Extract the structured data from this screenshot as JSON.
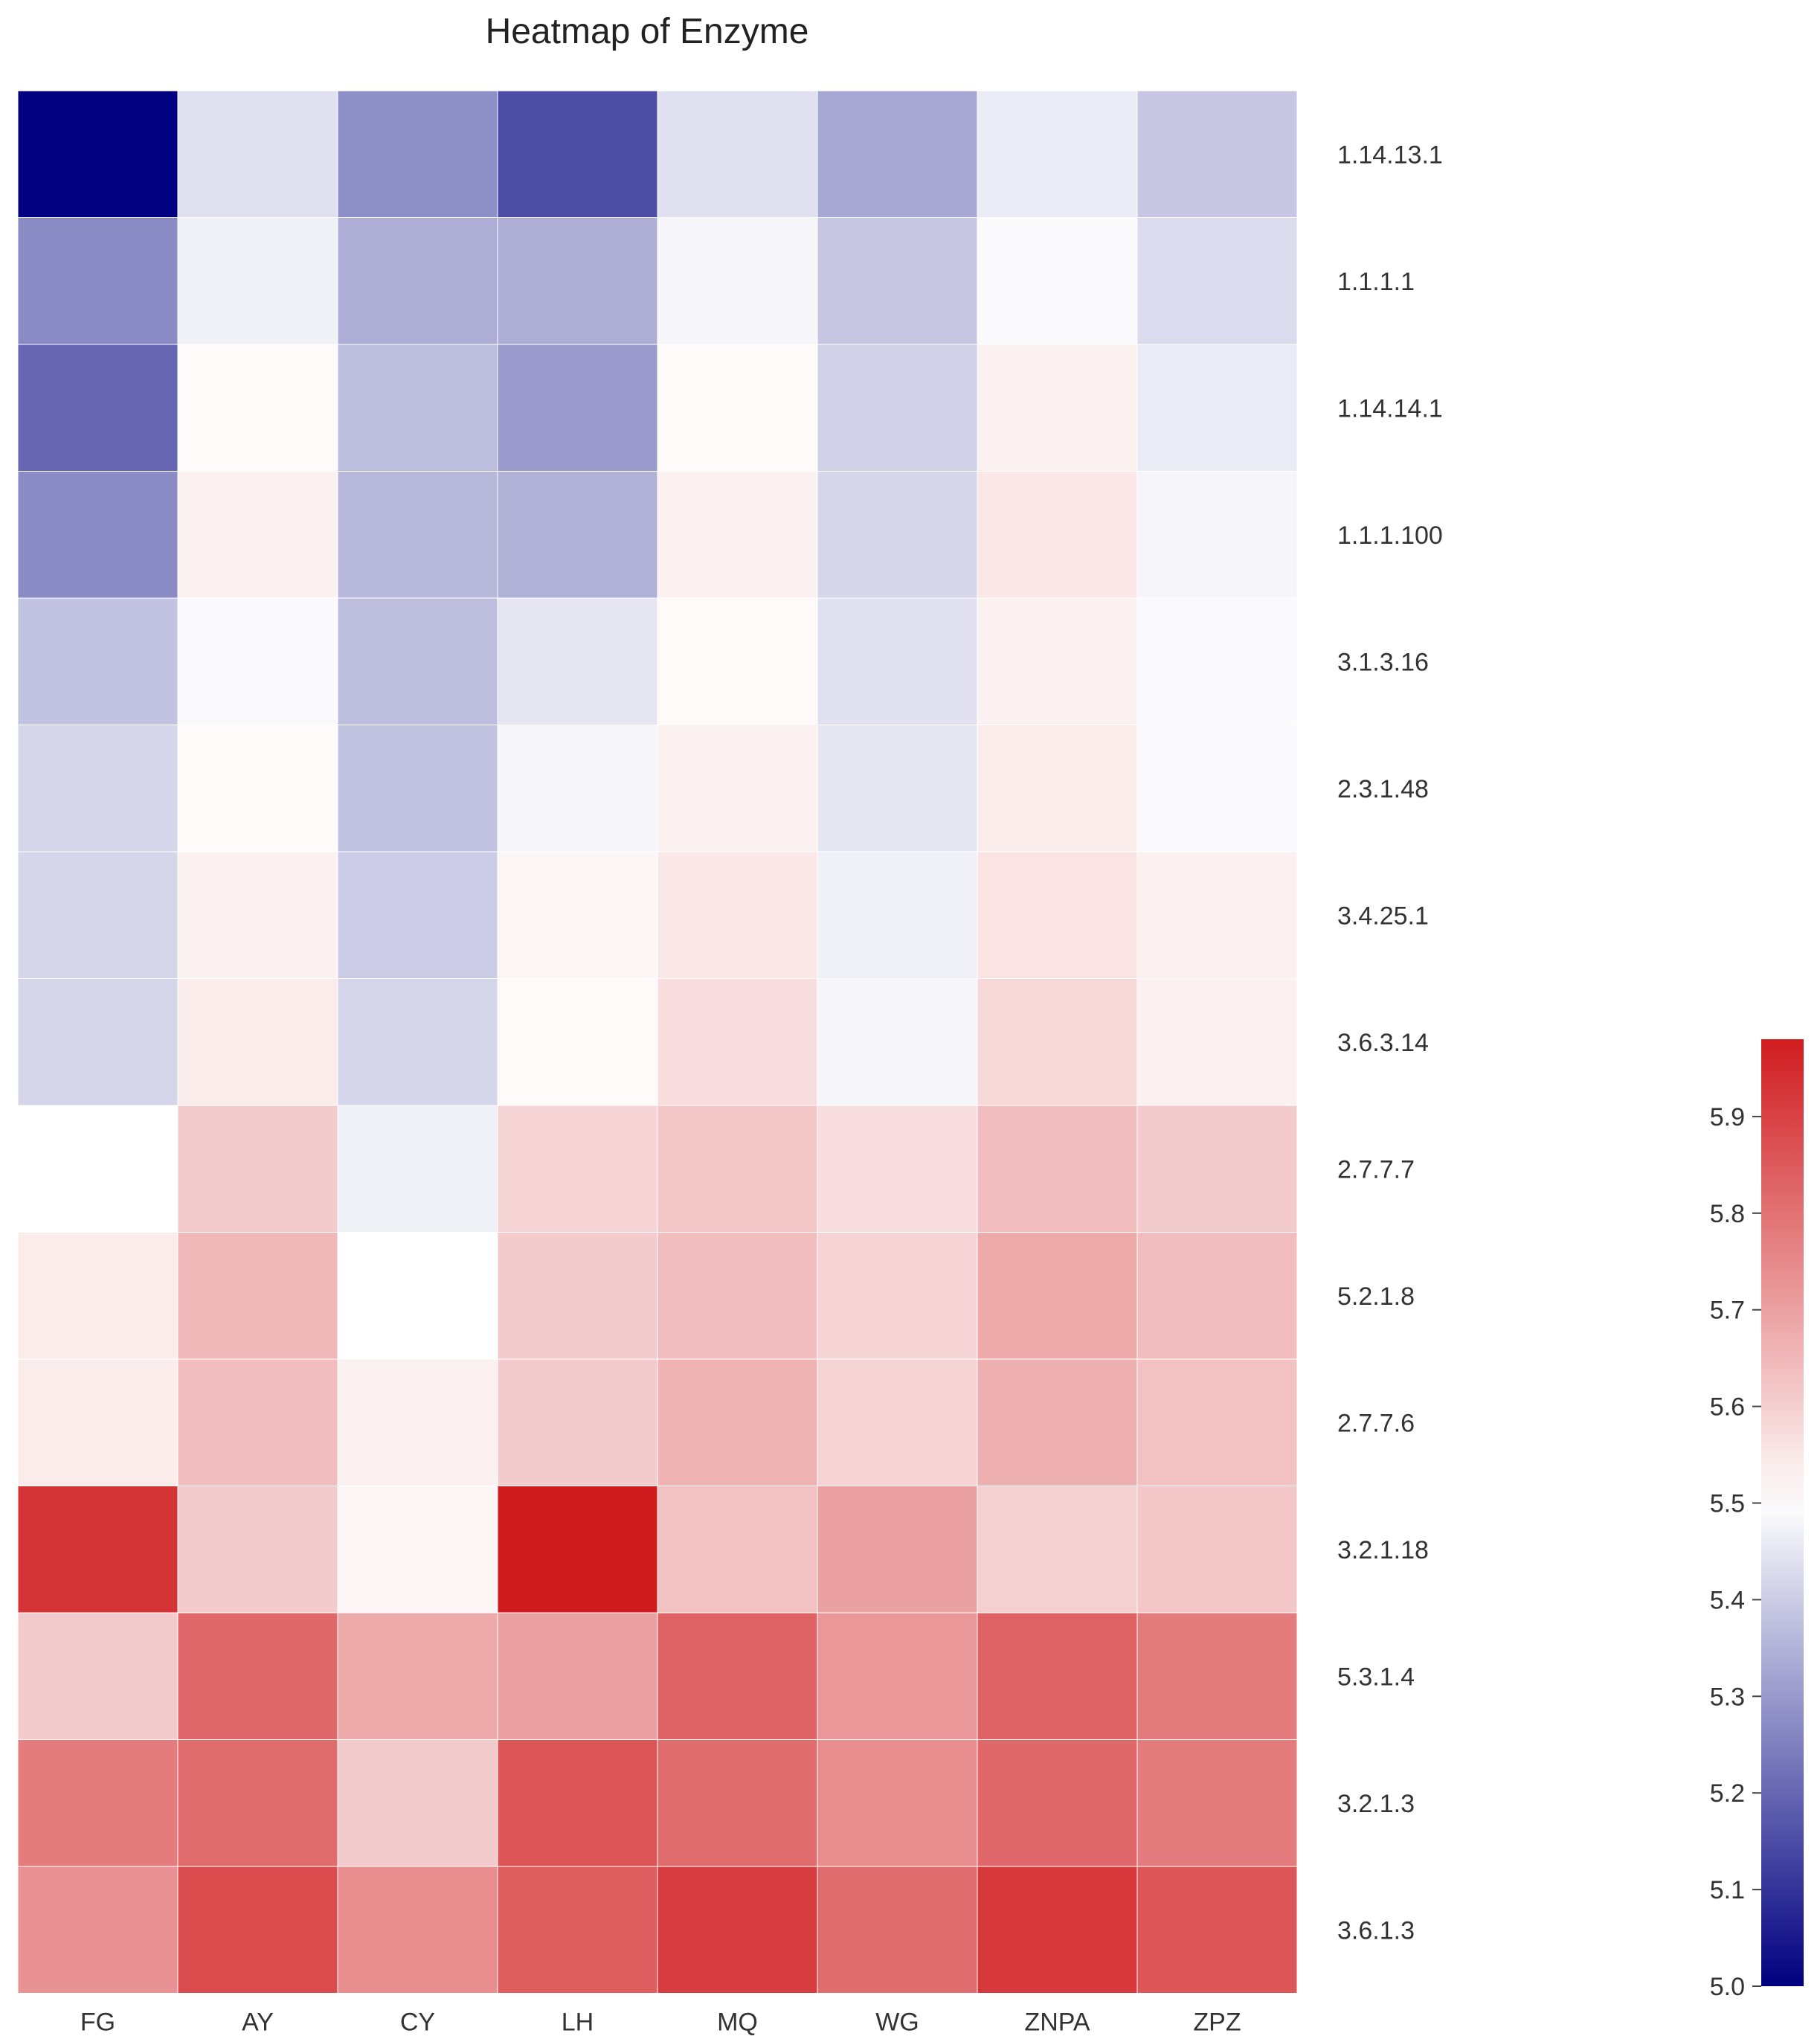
{
  "chart_data": {
    "type": "heatmap",
    "title": "Heatmap of Enzyme",
    "x_categories": [
      "FG",
      "AY",
      "CY",
      "LH",
      "MQ",
      "WG",
      "ZNPA",
      "ZPZ"
    ],
    "y_categories": [
      "1.14.13.1",
      "1.1.1.1",
      "1.14.14.1",
      "1.1.1.100",
      "3.1.3.16",
      "2.3.1.48",
      "3.4.25.1",
      "3.6.3.14",
      "2.7.7.7",
      "5.2.1.8",
      "2.7.7.6",
      "3.2.1.18",
      "5.3.1.4",
      "3.2.1.3",
      "3.6.1.3"
    ],
    "values": [
      [
        5.0,
        5.44,
        5.28,
        5.15,
        5.44,
        5.33,
        5.46,
        5.39
      ],
      [
        5.27,
        5.47,
        5.34,
        5.34,
        5.48,
        5.39,
        5.49,
        5.43
      ],
      [
        5.2,
        5.51,
        5.37,
        5.3,
        5.51,
        5.41,
        5.53,
        5.46
      ],
      [
        5.27,
        5.53,
        5.36,
        5.35,
        5.53,
        5.42,
        5.55,
        5.48
      ],
      [
        5.38,
        5.49,
        5.37,
        5.45,
        5.51,
        5.44,
        5.53,
        5.49
      ],
      [
        5.42,
        5.51,
        5.38,
        5.48,
        5.53,
        5.45,
        5.54,
        5.49
      ],
      [
        5.42,
        5.53,
        5.4,
        5.52,
        5.55,
        5.47,
        5.56,
        5.53
      ],
      [
        5.42,
        5.54,
        5.42,
        5.51,
        5.57,
        5.48,
        5.58,
        5.53
      ],
      [
        5.5,
        5.61,
        5.47,
        5.59,
        5.62,
        5.57,
        5.64,
        5.61
      ],
      [
        5.54,
        5.65,
        5.5,
        5.61,
        5.64,
        5.59,
        5.68,
        5.64
      ],
      [
        5.54,
        5.64,
        5.53,
        5.61,
        5.66,
        5.59,
        5.67,
        5.63
      ],
      [
        5.93,
        5.61,
        5.52,
        5.98,
        5.63,
        5.7,
        5.6,
        5.62
      ],
      [
        5.61,
        5.82,
        5.68,
        5.7,
        5.83,
        5.72,
        5.83,
        5.78
      ],
      [
        5.78,
        5.81,
        5.61,
        5.86,
        5.81,
        5.74,
        5.82,
        5.78
      ],
      [
        5.73,
        5.88,
        5.74,
        5.84,
        5.91,
        5.81,
        5.92,
        5.86
      ]
    ],
    "colorbar": {
      "min": 5.0,
      "max": 5.98,
      "center": 5.5,
      "ticks": [
        "5.0",
        "5.1",
        "5.2",
        "5.3",
        "5.4",
        "5.5",
        "5.6",
        "5.7",
        "5.8",
        "5.9"
      ]
    },
    "colors": {
      "low": "#000080",
      "mid": "#ffffff",
      "high": "#d01c1f"
    },
    "legend_position": "right"
  }
}
